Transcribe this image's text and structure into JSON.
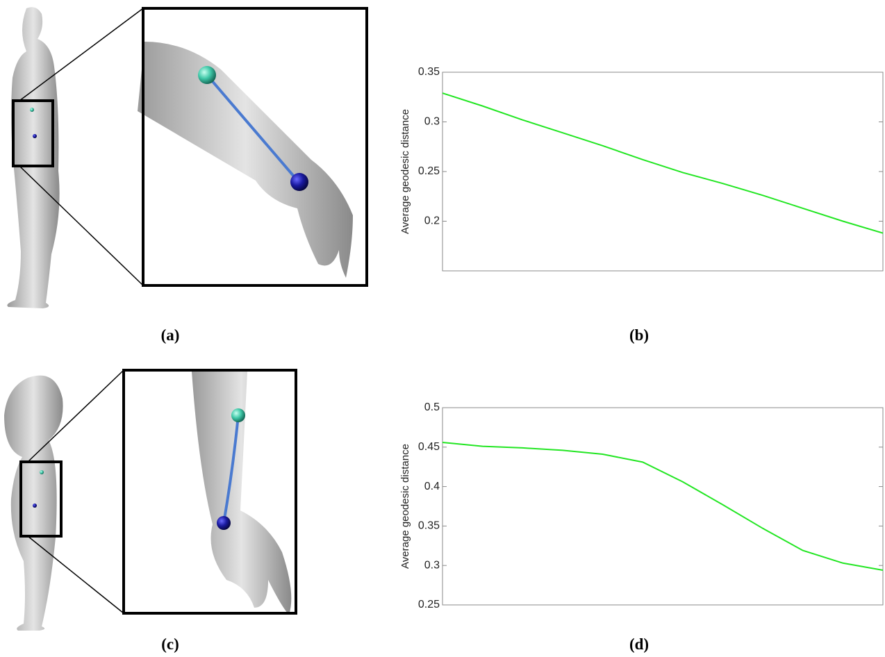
{
  "captions": [
    "(a)",
    "(b)",
    "(c)",
    "(d)"
  ],
  "chart_data": [
    {
      "type": "line",
      "y_label": "Average geodesic distance",
      "categories": [
        null,
        null,
        null,
        null,
        null,
        null,
        null,
        null,
        null,
        null,
        null,
        null
      ],
      "values": [
        0.329,
        0.316,
        0.302,
        0.289,
        0.276,
        0.262,
        0.249,
        0.238,
        0.226,
        0.213,
        0.2,
        0.188
      ],
      "color": "#22e622",
      "ylim": [
        0.15,
        0.35
      ],
      "yticks": [
        0.2,
        0.25,
        0.3,
        0.35
      ],
      "grid": false
    },
    {
      "type": "line",
      "y_label": "Average geodesic distance",
      "categories": [
        null,
        null,
        null,
        null,
        null,
        null,
        null,
        null,
        null,
        null,
        null,
        null
      ],
      "values": [
        0.456,
        0.451,
        0.449,
        0.446,
        0.441,
        0.431,
        0.406,
        0.377,
        0.347,
        0.319,
        0.303,
        0.294
      ],
      "color": "#22e622",
      "ylim": [
        0.25,
        0.5
      ],
      "yticks": [
        0.25,
        0.3,
        0.35,
        0.4,
        0.45,
        0.5
      ],
      "grid": false
    }
  ]
}
